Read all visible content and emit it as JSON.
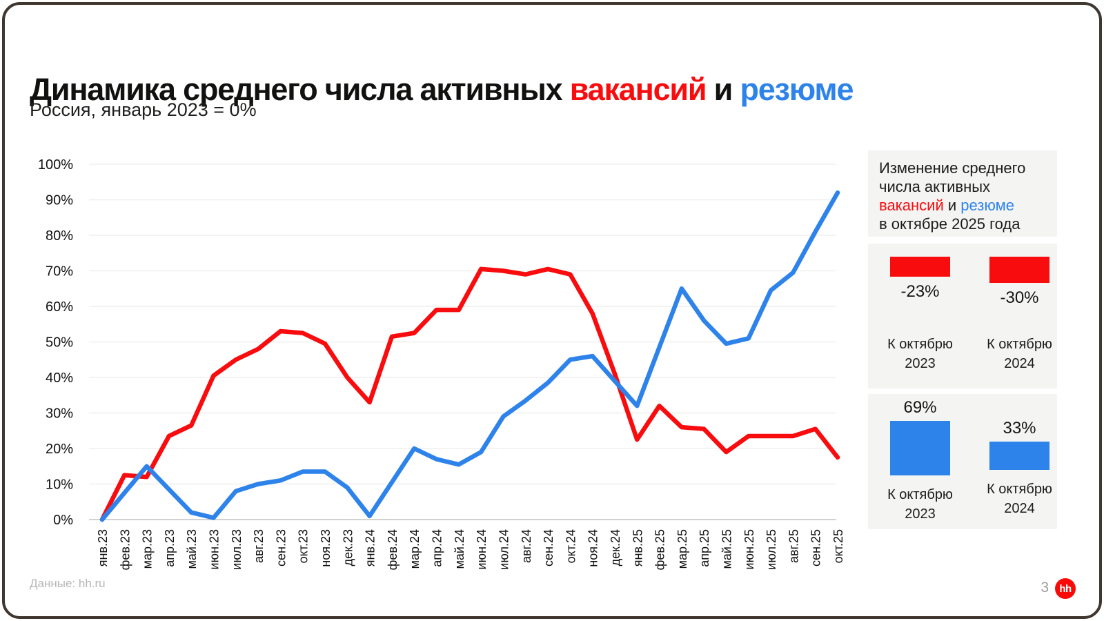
{
  "title": {
    "part1": "Динамика среднего числа активных ",
    "vacancies_word": "вакансий",
    "part2": " и ",
    "resumes_word": "резюме"
  },
  "subtitle": "Россия, январь 2023 = 0%",
  "colors": {
    "red": "#F80C0E",
    "blue": "#2E83EA",
    "grid": "#efefed",
    "axis": "#d2d2d0",
    "card_bg": "#f4f4f2",
    "text": "#111110",
    "muted": "#b5b5b3"
  },
  "chart_data": {
    "type": "line",
    "title": "Динамика среднего числа активных вакансий и резюме",
    "subtitle": "Россия, январь 2023 = 0%",
    "xlabel": "",
    "ylabel": "",
    "ylim": [
      0,
      100
    ],
    "grid": "horizontal",
    "legend": "none",
    "y_ticks": [
      "0%",
      "10%",
      "20%",
      "30%",
      "40%",
      "50%",
      "60%",
      "70%",
      "80%",
      "90%",
      "100%"
    ],
    "x": [
      "янв.23",
      "фев.23",
      "мар.23",
      "апр.23",
      "май.23",
      "июн.23",
      "июл.23",
      "авг.23",
      "сен.23",
      "окт.23",
      "ноя.23",
      "дек.23",
      "янв.24",
      "фев.24",
      "мар.24",
      "апр.24",
      "май.24",
      "июн.24",
      "июл.24",
      "авг.24",
      "сен.24",
      "окт.24",
      "ноя.24",
      "дек.24",
      "янв.25",
      "фев.25",
      "мар.25",
      "апр.25",
      "май.25",
      "июн.25",
      "июл.25",
      "авг.25",
      "сен.25",
      "окт.25"
    ],
    "series": [
      {
        "name": "вакансии",
        "color": "#F80C0E",
        "values": [
          0,
          12.5,
          12,
          23.5,
          26.5,
          40.5,
          45,
          48,
          53,
          52.5,
          49.5,
          40,
          33,
          51.5,
          52.5,
          59,
          59,
          70.5,
          70,
          69,
          70.5,
          69,
          58,
          41,
          22.5,
          32,
          26,
          25.5,
          19,
          23.5,
          23.5,
          23.5,
          25.5,
          17.5
        ]
      },
      {
        "name": "резюме",
        "color": "#2E83EA",
        "values": [
          0,
          7.5,
          15,
          8.5,
          2,
          0.5,
          8,
          10,
          11,
          13.5,
          13.5,
          9,
          1,
          10.5,
          20,
          17,
          15.5,
          19,
          29,
          33.5,
          38.5,
          45,
          46,
          39,
          32,
          48.5,
          65,
          56,
          49.5,
          51,
          64.5,
          69.5,
          81,
          92
        ]
      }
    ]
  },
  "panel": {
    "heading": {
      "line1": "Изменение среднего",
      "line2": "числа активных",
      "line3_red": "вакансий",
      "line3_mid": " и ",
      "line3_blue": "резюме",
      "line4": "в октябре 2025 года"
    },
    "vacancies_card": {
      "items": [
        {
          "label": "-23%",
          "value": -23,
          "color": "red",
          "compare_line1": "К октябрю",
          "compare_line2": "2023"
        },
        {
          "label": "-30%",
          "value": -30,
          "color": "red",
          "compare_line1": "К октябрю",
          "compare_line2": "2024"
        }
      ]
    },
    "resumes_card": {
      "items": [
        {
          "label": "69%",
          "value": 69,
          "color": "blue",
          "compare_line1": "К октябрю",
          "compare_line2": "2023"
        },
        {
          "label": "33%",
          "value": 33,
          "color": "blue",
          "compare_line1": "К октябрю",
          "compare_line2": "2024"
        }
      ]
    }
  },
  "footer": {
    "source": "Данные: hh.ru",
    "page": "3",
    "logo_text": "hh"
  }
}
